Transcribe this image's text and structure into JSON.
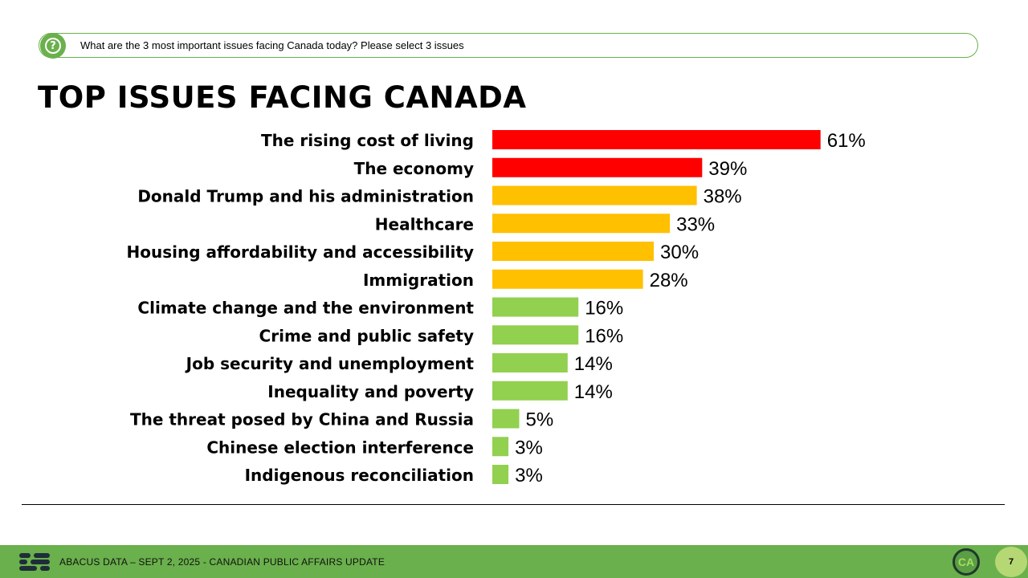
{
  "question": {
    "icon": "question-icon",
    "text": "What are the 3 most important issues facing Canada today? Please select 3 issues"
  },
  "title": "TOP ISSUES FACING CANADA",
  "colors": {
    "top": "#ff0000",
    "mid": "#ffc000",
    "low": "#92d050",
    "accent_green": "#6ab04c"
  },
  "chart_data": {
    "type": "bar",
    "orientation": "horizontal",
    "title": "TOP ISSUES FACING CANADA",
    "xlabel": "",
    "ylabel": "",
    "xlim": [
      0,
      100
    ],
    "unit": "%",
    "categories": [
      "The rising cost of living",
      "The economy",
      "Donald Trump and his administration",
      "Healthcare",
      "Housing affordability and accessibility",
      "Immigration",
      "Climate change and the environment",
      "Crime and public safety",
      "Job security and unemployment",
      "Inequality and poverty",
      "The threat posed by China and Russia",
      "Chinese election interference",
      "Indigenous reconciliation"
    ],
    "values": [
      61,
      39,
      38,
      33,
      30,
      28,
      16,
      16,
      14,
      14,
      5,
      3,
      3
    ],
    "labels": [
      "61%",
      "39%",
      "38%",
      "33%",
      "30%",
      "28%",
      "16%",
      "16%",
      "14%",
      "14%",
      "5%",
      "3%",
      "3%"
    ],
    "color_groups": [
      "top",
      "top",
      "mid",
      "mid",
      "mid",
      "mid",
      "low",
      "low",
      "low",
      "low",
      "low",
      "low",
      "low"
    ]
  },
  "footer": {
    "logo_icon": "abacus-logo-icon",
    "text": "ABACUS DATA – SEPT 2, 2025 - CANADIAN PUBLIC AFFAIRS UPDATE",
    "ca_logo_text": "CA",
    "page_number": "7"
  }
}
